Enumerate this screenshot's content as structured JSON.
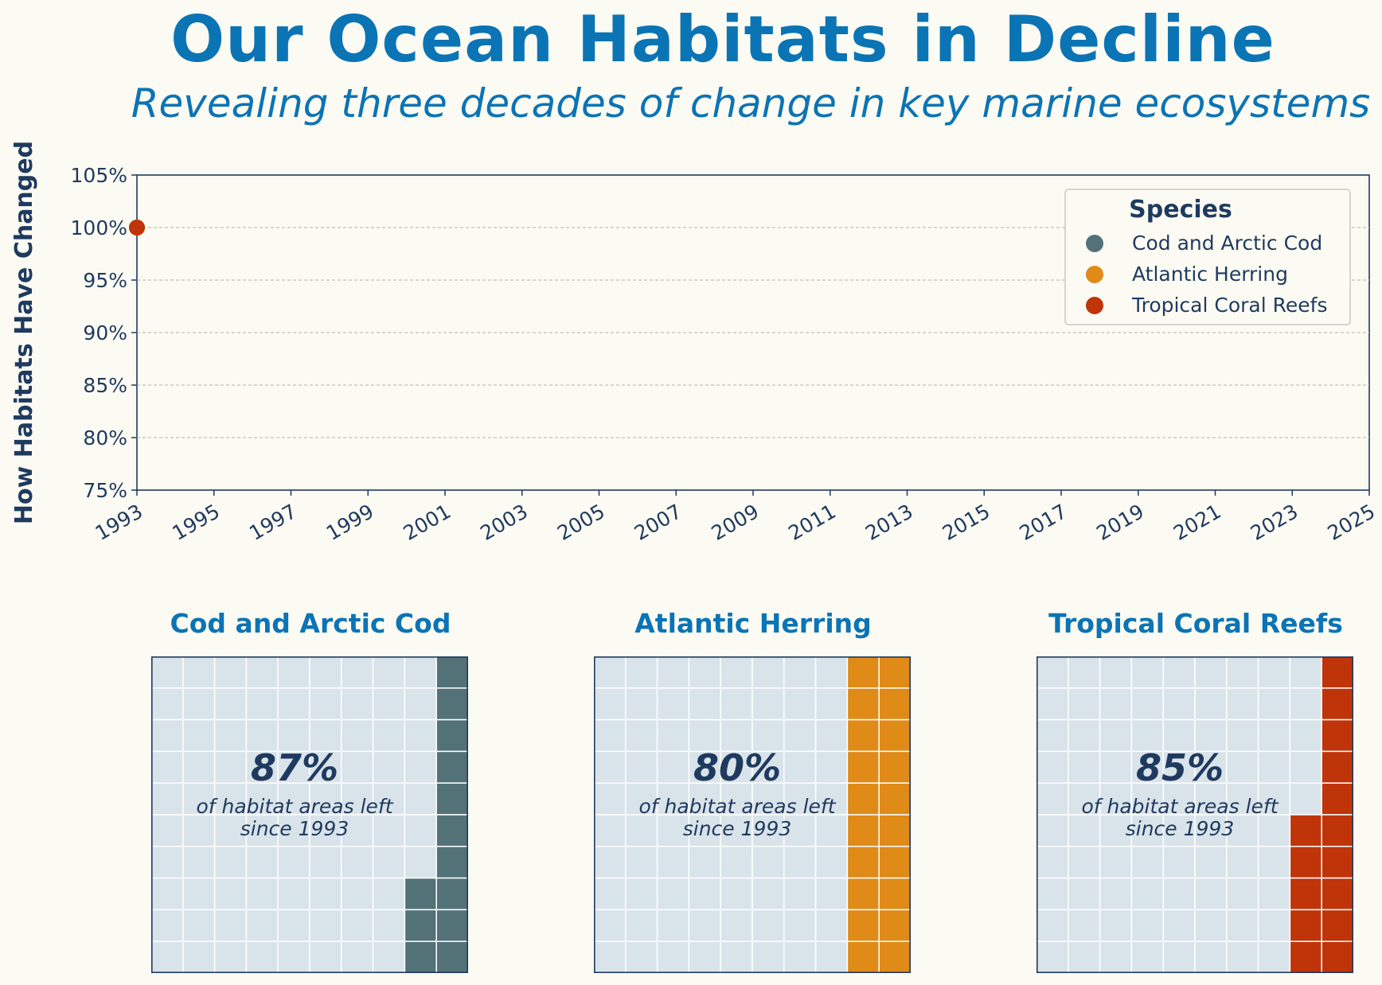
{
  "title": "Our Ocean Habitats in Decline",
  "subtitle": "Revealing three decades of change in key marine ecosystems",
  "colors": {
    "title": "#0b74b5",
    "text": "#1f3a5f",
    "background": "#fcfbf3",
    "waffle_empty": "#d9e3ea",
    "cod": "#527278",
    "herring": "#e08a17",
    "coral": "#c0340a"
  },
  "chart_data": [
    {
      "type": "scatter",
      "ylabel": "How Habitats Have Changed",
      "xlabel": "",
      "xlim": [
        1993,
        2025
      ],
      "ylim": [
        75,
        105
      ],
      "x_ticks": [
        "1993",
        "1995",
        "1997",
        "1999",
        "2001",
        "2003",
        "2005",
        "2007",
        "2009",
        "2011",
        "2013",
        "2015",
        "2017",
        "2019",
        "2021",
        "2023",
        "2025"
      ],
      "y_ticks": [
        "75%",
        "80%",
        "85%",
        "90%",
        "95%",
        "100%",
        "105%"
      ],
      "grid": "horizontal dashed",
      "legend": {
        "title": "Species",
        "placement": "top-right",
        "entries": [
          "Cod and Arctic Cod",
          "Atlantic Herring",
          "Tropical Coral Reefs"
        ]
      },
      "series": [
        {
          "name": "Cod and Arctic Cod",
          "color": "#527278",
          "points": [
            {
              "x": 1993,
              "y": 100
            }
          ]
        },
        {
          "name": "Atlantic Herring",
          "color": "#e08a17",
          "points": [
            {
              "x": 1993,
              "y": 100
            }
          ]
        },
        {
          "name": "Tropical Coral Reefs",
          "color": "#c0340a",
          "points": [
            {
              "x": 1993,
              "y": 100
            }
          ]
        }
      ]
    },
    {
      "type": "waffle",
      "grid": [
        10,
        10
      ],
      "panels": [
        {
          "title": "Cod and Arctic Cod",
          "percent_label": "87%",
          "remaining": 87,
          "lost": 13,
          "color": "#527278",
          "caption_line1": "of habitat areas left",
          "caption_line2": "since 1993"
        },
        {
          "title": "Atlantic Herring",
          "percent_label": "80%",
          "remaining": 80,
          "lost": 20,
          "color": "#e08a17",
          "caption_line1": "of habitat areas left",
          "caption_line2": "since 1993"
        },
        {
          "title": "Tropical Coral Reefs",
          "percent_label": "85%",
          "remaining": 85,
          "lost": 15,
          "color": "#c0340a",
          "caption_line1": "of habitat areas left",
          "caption_line2": "since 1993"
        }
      ]
    }
  ]
}
